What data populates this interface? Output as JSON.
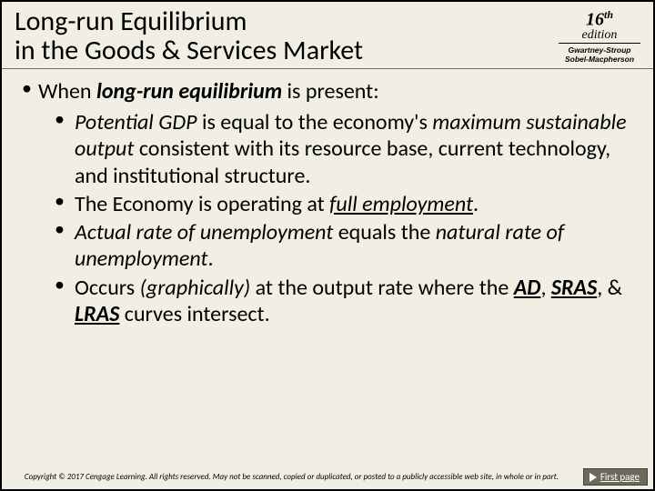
{
  "header": {
    "title_line1": "Long-run Equilibrium",
    "title_line2": "in the Goods & Services Market",
    "edition_number": "16",
    "edition_suffix": "th",
    "edition_word": "edition",
    "authors_line1": "Gwartney-Stroup",
    "authors_line2": "Sobel-Macpherson"
  },
  "body": {
    "lead_pre": "When ",
    "lead_bold": "long-run equilibrium",
    "lead_post": " is present:",
    "bullets": {
      "b1_a": "Potential GDP",
      "b1_b": " is equal to the economy's ",
      "b1_c": "maximum sustainable output",
      "b1_d": " consistent with its resource base, current technology, and institutional structure.",
      "b2_a": "The Economy is operating at ",
      "b2_b": "full employment",
      "b2_c": ".",
      "b3_a": "Actual rate of unemployment",
      "b3_b": " equals the ",
      "b3_c": "natural rate of unemployment",
      "b3_d": ".",
      "b4_a": "Occurs ",
      "b4_b": "(graphically)",
      "b4_c": " at the output rate where the ",
      "b4_d": "AD",
      "b4_e": ", ",
      "b4_f": "SRAS",
      "b4_g": ", & ",
      "b4_h": "LRAS",
      "b4_i": " curves intersect."
    }
  },
  "footer": {
    "copyright": "Copyright © 2017 Cengage Learning. All rights reserved. May not be scanned, copied or duplicated, or posted to a publicly accessible web site, in whole or in part.",
    "first_page_label": "First page"
  },
  "colors": {
    "slide_bg": "#f1efe4",
    "button_bg": "#6b6a5c"
  }
}
